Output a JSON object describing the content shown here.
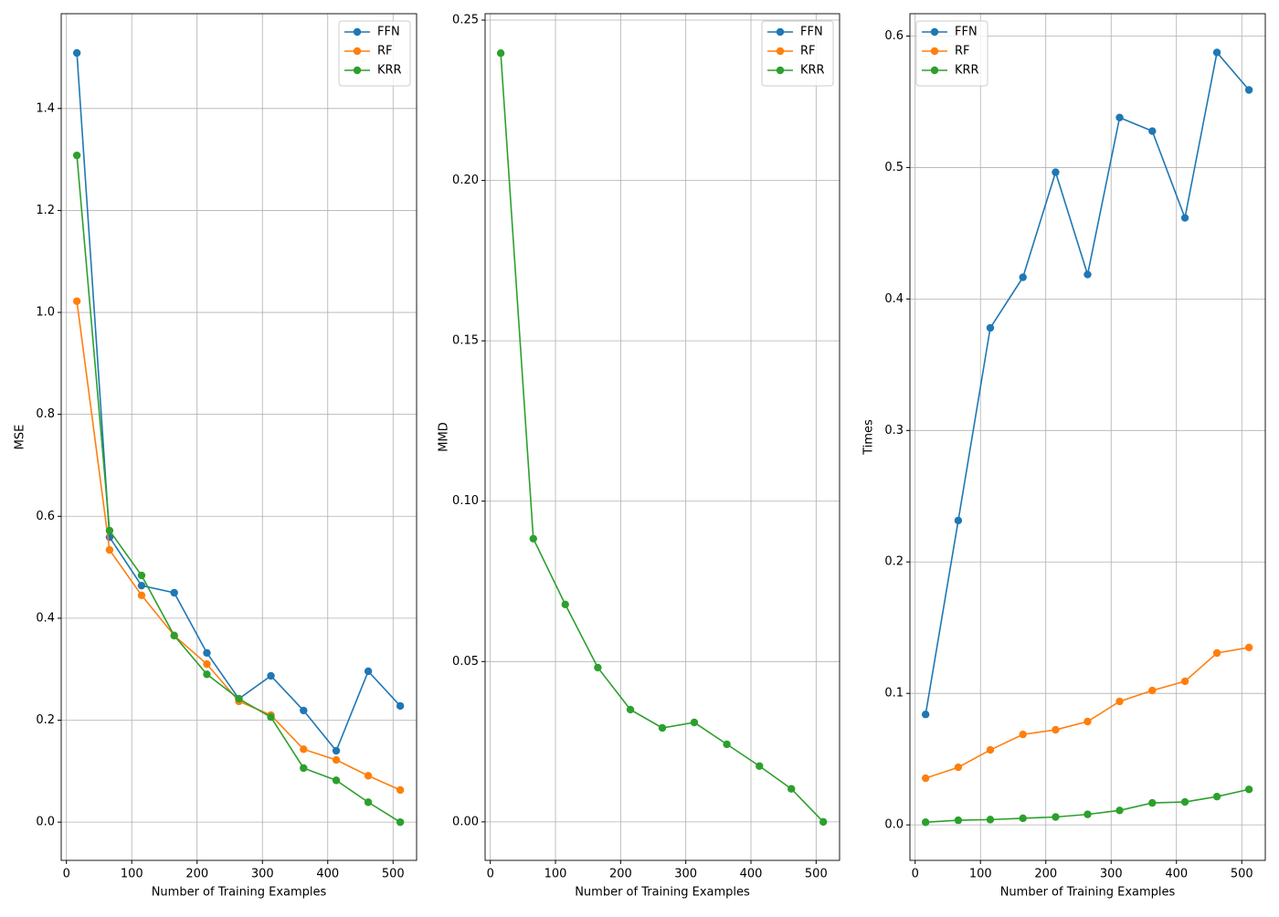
{
  "chart_data": [
    {
      "type": "line",
      "xlabel": "Number of Training Examples",
      "ylabel": "MSE",
      "x": [
        16,
        66,
        115,
        165,
        215,
        264,
        313,
        363,
        413,
        462,
        511
      ],
      "series": [
        {
          "name": "FFN",
          "color": "#1f77b4",
          "values": [
            1.509,
            0.559,
            0.464,
            0.45,
            0.332,
            0.242,
            0.287,
            0.219,
            0.14,
            0.296,
            0.228
          ]
        },
        {
          "name": "RF",
          "color": "#ff7f0e",
          "values": [
            1.022,
            0.534,
            0.445,
            0.366,
            0.31,
            0.237,
            0.21,
            0.143,
            0.122,
            0.091,
            0.063
          ]
        },
        {
          "name": "KRR",
          "color": "#2ca02c",
          "values": [
            1.308,
            0.572,
            0.484,
            0.366,
            0.29,
            0.242,
            0.206,
            0.106,
            0.082,
            0.039,
            0.0
          ]
        }
      ],
      "xlim": [
        -8,
        536
      ],
      "xticks": [
        0,
        100,
        200,
        300,
        400,
        500
      ],
      "ylim": [
        -0.075,
        1.586
      ],
      "yticks": [
        {
          "value": 0,
          "label": "0.0"
        },
        0.2,
        0.4,
        0.6,
        0.8,
        {
          "value": 1,
          "label": "1.0"
        },
        1.2,
        1.4
      ],
      "grid": true,
      "legend": "upper-right"
    },
    {
      "type": "line",
      "xlabel": "Number of Training Examples",
      "ylabel": "MMD",
      "x": [
        16,
        66,
        115,
        165,
        215,
        264,
        313,
        363,
        413,
        462,
        511
      ],
      "series": [
        {
          "name": "FFN",
          "color": "#1f77b4",
          "values": [
            null,
            null,
            null,
            null,
            null,
            null,
            null,
            null,
            null,
            null,
            null
          ]
        },
        {
          "name": "RF",
          "color": "#ff7f0e",
          "values": [
            null,
            null,
            null,
            null,
            null,
            null,
            null,
            null,
            null,
            null,
            null
          ]
        },
        {
          "name": "KRR",
          "color": "#2ca02c",
          "values": [
            0.2397,
            0.0883,
            0.0678,
            0.0481,
            0.035,
            0.0293,
            0.031,
            0.0242,
            0.0174,
            0.0103,
            0.0
          ]
        }
      ],
      "xlim": [
        -8,
        536
      ],
      "xticks": [
        0,
        100,
        200,
        300,
        400,
        500
      ],
      "ylim": [
        -0.012,
        0.252
      ],
      "yticks": [
        {
          "value": 0,
          "label": "0.00"
        },
        0.05,
        {
          "value": 0.1,
          "label": "0.10"
        },
        0.15,
        {
          "value": 0.2,
          "label": "0.20"
        },
        0.25
      ],
      "grid": true,
      "legend": "upper-right"
    },
    {
      "type": "line",
      "xlabel": "Number of Training Examples",
      "ylabel": "Times",
      "x": [
        16,
        66,
        115,
        165,
        215,
        264,
        313,
        363,
        413,
        462,
        511
      ],
      "series": [
        {
          "name": "FFN",
          "color": "#1f77b4",
          "values": [
            0.084,
            0.2315,
            0.378,
            0.4165,
            0.4964,
            0.4186,
            0.538,
            0.5277,
            0.4617,
            0.5875,
            0.559
          ]
        },
        {
          "name": "RF",
          "color": "#ff7f0e",
          "values": [
            0.0355,
            0.0438,
            0.057,
            0.0688,
            0.0723,
            0.0786,
            0.0939,
            0.1022,
            0.1092,
            0.1307,
            0.1349
          ]
        },
        {
          "name": "KRR",
          "color": "#2ca02c",
          "values": [
            0.002,
            0.0035,
            0.004,
            0.005,
            0.006,
            0.008,
            0.011,
            0.0167,
            0.0174,
            0.0215,
            0.027
          ]
        }
      ],
      "xlim": [
        -8,
        536
      ],
      "xticks": [
        0,
        100,
        200,
        300,
        400,
        500
      ],
      "ylim": [
        -0.027,
        0.617
      ],
      "yticks": [
        {
          "value": 0,
          "label": "0.0"
        },
        0.1,
        0.2,
        0.3,
        0.4,
        0.5,
        0.6
      ],
      "grid": true,
      "legend": "upper-left"
    }
  ]
}
